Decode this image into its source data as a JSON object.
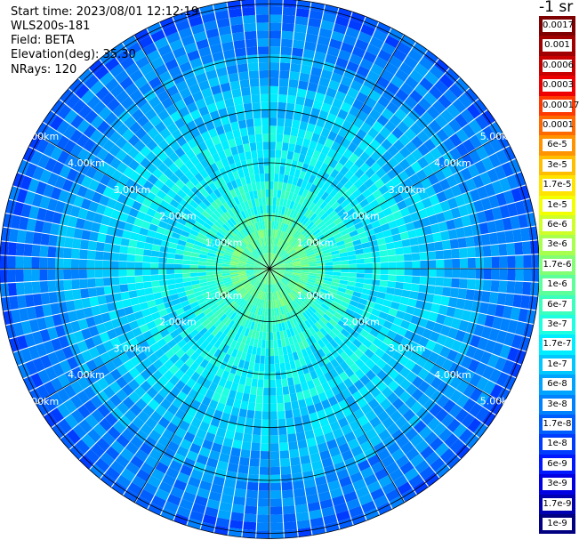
{
  "info": {
    "start_time": "Start time: 2023/08/01 12:12:19",
    "instrument": "WLS200s-181",
    "field": "Field: BETA",
    "elevation": "Elevation(deg): 35.30",
    "nrays": "NRays: 120"
  },
  "chart_data": {
    "type": "heatmap",
    "projection": "polar",
    "nrays": 120,
    "range_rings_km": [
      1,
      2,
      3,
      4,
      5
    ],
    "ring_labels": [
      "1.00km",
      "2.00km",
      "3.00km",
      "4.00km",
      "5.00km"
    ],
    "max_range_km": 5.1,
    "spoke_angles_deg": [
      0,
      30,
      60,
      90,
      120,
      150,
      180,
      210,
      240,
      270,
      300,
      330
    ],
    "colorbar_unit": "-1 sr",
    "colorbar_labels": [
      "0.0017",
      "0.001",
      "0.0006",
      "0.0003",
      "0.00017",
      "0.0001",
      "6e-5",
      "3e-5",
      "1.7e-5",
      "1e-5",
      "6e-6",
      "3e-6",
      "1.7e-6",
      "1e-6",
      "6e-7",
      "3e-7",
      "1.7e-7",
      "1e-7",
      "6e-8",
      "3e-8",
      "1.7e-8",
      "1e-8",
      "6e-9",
      "3e-9",
      "1.7e-9",
      "1e-9"
    ],
    "colorbar_colors": [
      "#7f0000",
      "#a00000",
      "#c80000",
      "#ee0000",
      "#ff3a00",
      "#ff6a00",
      "#ff9400",
      "#ffbf00",
      "#ffe400",
      "#f2ff00",
      "#ceff28",
      "#a8ff4e",
      "#82ff74",
      "#5cff9a",
      "#3affbd",
      "#1effe1",
      "#00ecff",
      "#00c8ff",
      "#00a4ff",
      "#0082ff",
      "#005eff",
      "#003cff",
      "#0018ff",
      "#0000e2",
      "#0000b0",
      "#000080"
    ],
    "radial_bins_km": [
      0.15,
      0.3,
      0.45,
      0.6,
      0.75,
      0.9,
      1.05,
      1.2,
      1.35,
      1.5,
      1.65,
      1.8,
      1.95,
      2.1,
      2.25,
      2.4,
      2.55,
      2.7,
      2.85,
      3.0,
      3.15,
      3.3,
      3.45,
      3.6,
      3.75,
      3.9,
      4.05,
      4.2,
      4.35,
      4.5,
      4.65,
      4.8,
      4.95,
      5.1
    ],
    "radial_profile_color_index": [
      13,
      13,
      14,
      13,
      13,
      14,
      14,
      15,
      15,
      15,
      15,
      16,
      16,
      16,
      16,
      16,
      16,
      16,
      17,
      17,
      17,
      17,
      17,
      18,
      18,
      18,
      18,
      19,
      19,
      19,
      19,
      19,
      20,
      20
    ]
  }
}
